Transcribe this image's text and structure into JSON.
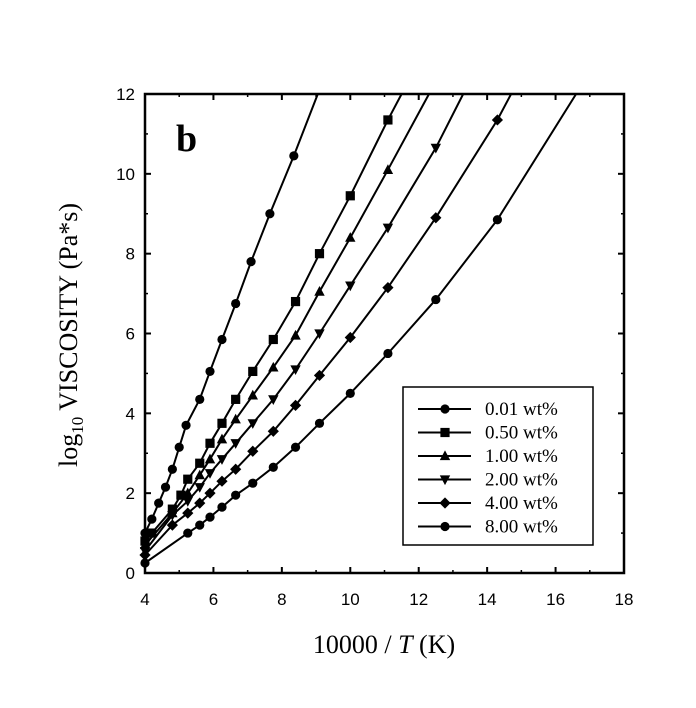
{
  "chart_data": {
    "type": "line",
    "panel_label": "b",
    "xlabel": {
      "prefix": "10000 / ",
      "var": "T",
      "suffix": " (K)"
    },
    "ylabel": {
      "prefix": "log",
      "sub": "10",
      "suffix": " VISCOSITY (Pa*s)"
    },
    "xlim": [
      4,
      18
    ],
    "ylim": [
      0,
      12
    ],
    "xticks": [
      4,
      6,
      8,
      10,
      12,
      14,
      16,
      18
    ],
    "yticks": [
      0,
      2,
      4,
      6,
      8,
      10,
      12
    ],
    "grid": false,
    "legend_position": "bottom-right",
    "series": [
      {
        "name": "0.01 wt%",
        "marker": "circle",
        "points": [
          [
            4.0,
            1.0
          ],
          [
            4.2,
            1.35
          ],
          [
            4.4,
            1.75
          ],
          [
            4.6,
            2.15
          ],
          [
            4.8,
            2.6
          ],
          [
            5.0,
            3.15
          ],
          [
            5.2,
            3.7
          ],
          [
            5.6,
            4.35
          ],
          [
            5.9,
            5.05
          ],
          [
            6.25,
            5.85
          ],
          [
            6.65,
            6.75
          ],
          [
            7.1,
            7.8
          ],
          [
            7.65,
            9.0
          ],
          [
            8.35,
            10.45
          ]
        ],
        "line": [
          [
            4.0,
            1.0
          ],
          [
            4.2,
            1.35
          ],
          [
            4.4,
            1.75
          ],
          [
            4.6,
            2.15
          ],
          [
            4.8,
            2.6
          ],
          [
            5.0,
            3.15
          ],
          [
            5.2,
            3.7
          ],
          [
            5.6,
            4.35
          ],
          [
            5.9,
            5.05
          ],
          [
            6.25,
            5.85
          ],
          [
            6.65,
            6.75
          ],
          [
            7.1,
            7.8
          ],
          [
            7.65,
            9.0
          ],
          [
            8.35,
            10.45
          ],
          [
            9.05,
            12.0
          ]
        ]
      },
      {
        "name": "0.50 wt%",
        "marker": "square",
        "points": [
          [
            4.0,
            0.8
          ],
          [
            4.2,
            1.0
          ],
          [
            4.8,
            1.6
          ],
          [
            5.05,
            1.95
          ],
          [
            5.25,
            2.35
          ],
          [
            5.6,
            2.75
          ],
          [
            5.9,
            3.25
          ],
          [
            6.25,
            3.75
          ],
          [
            6.65,
            4.35
          ],
          [
            7.15,
            5.05
          ],
          [
            7.75,
            5.85
          ],
          [
            8.4,
            6.8
          ],
          [
            9.1,
            8.0
          ],
          [
            10.0,
            9.45
          ],
          [
            11.1,
            11.35
          ]
        ],
        "line": [
          [
            4.0,
            0.8
          ],
          [
            4.2,
            1.0
          ],
          [
            4.8,
            1.6
          ],
          [
            5.05,
            1.95
          ],
          [
            5.25,
            2.35
          ],
          [
            5.6,
            2.75
          ],
          [
            5.9,
            3.25
          ],
          [
            6.25,
            3.75
          ],
          [
            6.65,
            4.35
          ],
          [
            7.15,
            5.05
          ],
          [
            7.75,
            5.85
          ],
          [
            8.4,
            6.8
          ],
          [
            9.1,
            8.0
          ],
          [
            10.0,
            9.45
          ],
          [
            11.1,
            11.35
          ],
          [
            11.5,
            12.0
          ]
        ]
      },
      {
        "name": "1.00 wt%",
        "marker": "triangle-up",
        "points": [
          [
            4.0,
            0.7
          ],
          [
            4.8,
            1.5
          ],
          [
            5.25,
            2.0
          ],
          [
            5.6,
            2.45
          ],
          [
            5.9,
            2.85
          ],
          [
            6.25,
            3.35
          ],
          [
            6.65,
            3.85
          ],
          [
            7.15,
            4.45
          ],
          [
            7.75,
            5.15
          ],
          [
            8.4,
            5.95
          ],
          [
            9.1,
            7.05
          ],
          [
            10.0,
            8.4
          ],
          [
            11.1,
            10.1
          ]
        ],
        "line": [
          [
            4.0,
            0.7
          ],
          [
            4.8,
            1.5
          ],
          [
            5.25,
            2.0
          ],
          [
            5.6,
            2.45
          ],
          [
            5.9,
            2.85
          ],
          [
            6.25,
            3.35
          ],
          [
            6.65,
            3.85
          ],
          [
            7.15,
            4.45
          ],
          [
            7.75,
            5.15
          ],
          [
            8.4,
            5.95
          ],
          [
            9.1,
            7.05
          ],
          [
            10.0,
            8.4
          ],
          [
            11.1,
            10.1
          ],
          [
            12.3,
            12.0
          ]
        ]
      },
      {
        "name": "2.00 wt%",
        "marker": "triangle-down",
        "points": [
          [
            4.0,
            0.55
          ],
          [
            4.8,
            1.45
          ],
          [
            5.25,
            1.8
          ],
          [
            5.6,
            2.15
          ],
          [
            5.9,
            2.5
          ],
          [
            6.25,
            2.85
          ],
          [
            6.65,
            3.25
          ],
          [
            7.15,
            3.75
          ],
          [
            7.75,
            4.35
          ],
          [
            8.4,
            5.1
          ],
          [
            9.1,
            6.0
          ],
          [
            10.0,
            7.2
          ],
          [
            11.1,
            8.65
          ],
          [
            12.5,
            10.65
          ]
        ],
        "line": [
          [
            4.0,
            0.55
          ],
          [
            4.8,
            1.45
          ],
          [
            5.25,
            1.8
          ],
          [
            5.6,
            2.15
          ],
          [
            5.9,
            2.5
          ],
          [
            6.25,
            2.85
          ],
          [
            6.65,
            3.25
          ],
          [
            7.15,
            3.75
          ],
          [
            7.75,
            4.35
          ],
          [
            8.4,
            5.1
          ],
          [
            9.1,
            6.0
          ],
          [
            10.0,
            7.2
          ],
          [
            11.1,
            8.65
          ],
          [
            12.5,
            10.65
          ],
          [
            13.3,
            12.0
          ]
        ]
      },
      {
        "name": "4.00 wt%",
        "marker": "diamond",
        "points": [
          [
            4.0,
            0.45
          ],
          [
            4.8,
            1.2
          ],
          [
            5.25,
            1.5
          ],
          [
            5.6,
            1.75
          ],
          [
            5.9,
            2.0
          ],
          [
            6.25,
            2.3
          ],
          [
            6.65,
            2.6
          ],
          [
            7.15,
            3.05
          ],
          [
            7.75,
            3.55
          ],
          [
            8.4,
            4.2
          ],
          [
            9.1,
            4.95
          ],
          [
            10.0,
            5.9
          ],
          [
            11.1,
            7.15
          ],
          [
            12.5,
            8.9
          ],
          [
            14.3,
            11.35
          ]
        ],
        "line": [
          [
            4.0,
            0.45
          ],
          [
            4.8,
            1.2
          ],
          [
            5.25,
            1.5
          ],
          [
            5.6,
            1.75
          ],
          [
            5.9,
            2.0
          ],
          [
            6.25,
            2.3
          ],
          [
            6.65,
            2.6
          ],
          [
            7.15,
            3.05
          ],
          [
            7.75,
            3.55
          ],
          [
            8.4,
            4.2
          ],
          [
            9.1,
            4.95
          ],
          [
            10.0,
            5.9
          ],
          [
            11.1,
            7.15
          ],
          [
            12.5,
            8.9
          ],
          [
            14.3,
            11.35
          ],
          [
            14.7,
            12.0
          ]
        ]
      },
      {
        "name": "8.00 wt%",
        "marker": "circle",
        "points": [
          [
            4.0,
            0.25
          ],
          [
            5.25,
            1.0
          ],
          [
            5.6,
            1.2
          ],
          [
            5.9,
            1.4
          ],
          [
            6.25,
            1.65
          ],
          [
            6.65,
            1.95
          ],
          [
            7.15,
            2.25
          ],
          [
            7.75,
            2.65
          ],
          [
            8.4,
            3.15
          ],
          [
            9.1,
            3.75
          ],
          [
            10.0,
            4.5
          ],
          [
            11.1,
            5.5
          ],
          [
            12.5,
            6.85
          ],
          [
            14.3,
            8.85
          ]
        ],
        "line": [
          [
            4.0,
            0.25
          ],
          [
            5.25,
            1.0
          ],
          [
            5.6,
            1.2
          ],
          [
            5.9,
            1.4
          ],
          [
            6.25,
            1.65
          ],
          [
            6.65,
            1.95
          ],
          [
            7.15,
            2.25
          ],
          [
            7.75,
            2.65
          ],
          [
            8.4,
            3.15
          ],
          [
            9.1,
            3.75
          ],
          [
            10.0,
            4.5
          ],
          [
            11.1,
            5.5
          ],
          [
            12.5,
            6.85
          ],
          [
            14.3,
            8.85
          ],
          [
            16.6,
            12.0
          ]
        ]
      }
    ]
  }
}
